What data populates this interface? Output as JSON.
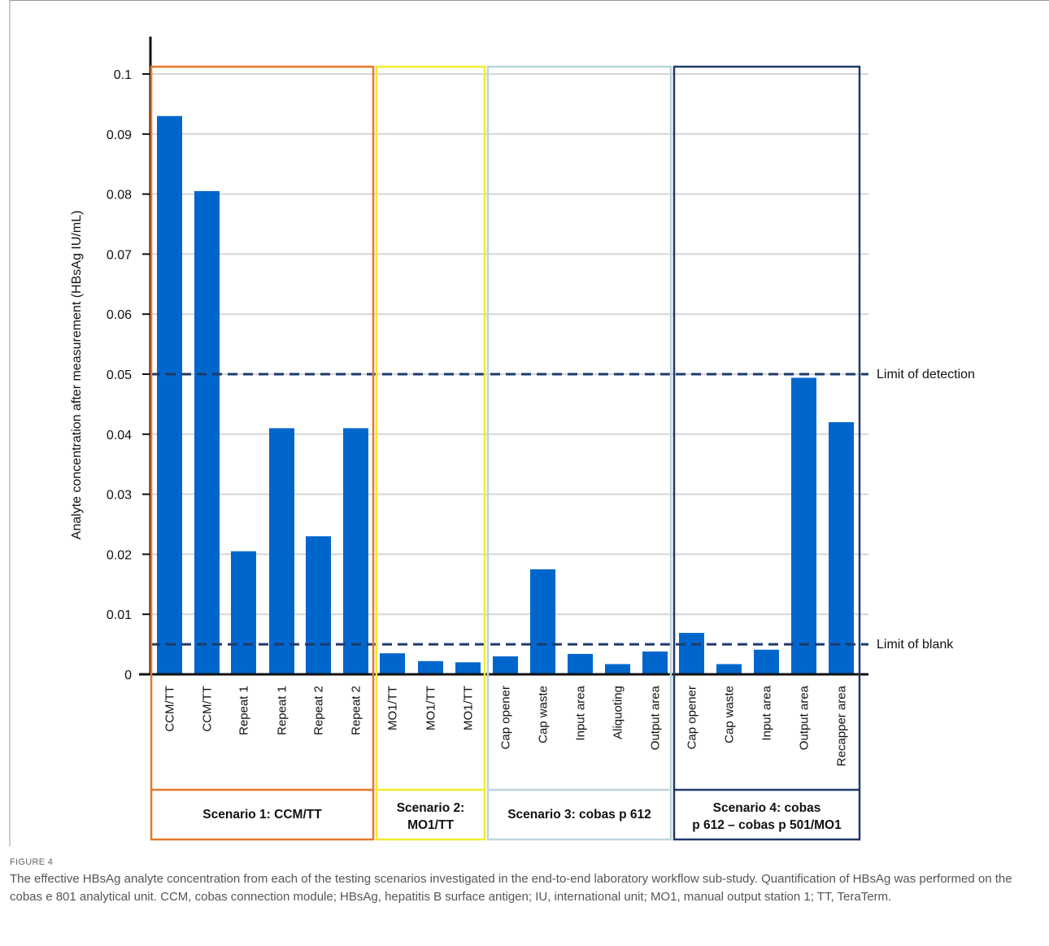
{
  "figure": {
    "label": "FIGURE 4",
    "caption": "The effective HBsAg analyte concentration from each of the testing scenarios investigated in the end-to-end laboratory workflow sub-study. Quantification of HBsAg was performed on the cobas e 801 analytical unit. CCM, cobas connection module; HBsAg, hepatitis B surface antigen; IU, international unit; MO1, manual output station 1; TT, TeraTerm."
  },
  "chart_data": {
    "type": "bar",
    "ylabel": "Analyte concentration after measurement (HBsAg IU/mL)",
    "ylim": [
      0,
      0.1
    ],
    "yticks": [
      0,
      0.01,
      0.02,
      0.03,
      0.04,
      0.05,
      0.06,
      0.07,
      0.08,
      0.09,
      0.1
    ],
    "ytick_labels": [
      "0",
      "0.01",
      "0.02",
      "0.03",
      "0.04",
      "0.05",
      "0.06",
      "0.07",
      "0.08",
      "0.09",
      "0.1"
    ],
    "grid": true,
    "bar_color": "#0066cc",
    "reference_lines": [
      {
        "label": "Limit of detection",
        "value": 0.05,
        "color": "#1f3a6b"
      },
      {
        "label": "Limit of blank",
        "value": 0.005,
        "color": "#1f3a6b"
      }
    ],
    "groups": [
      {
        "name": "Scenario 1: CCM/TT",
        "color": "#e8762b",
        "categories": [
          "CCM/TT",
          "CCM/TT",
          "Repeat 1",
          "Repeat 1",
          "Repeat 2",
          "Repeat 2"
        ],
        "values": [
          0.093,
          0.0805,
          0.0205,
          0.041,
          0.023,
          0.041
        ]
      },
      {
        "name": "Scenario 2: MO1/TT",
        "color": "#f2ec2b",
        "categories": [
          "MO1/TT",
          "MO1/TT",
          "MO1/TT"
        ],
        "values": [
          0.0035,
          0.0022,
          0.002
        ]
      },
      {
        "name": "Scenario 3: cobas p 612",
        "color": "#bcd6dc",
        "categories": [
          "Cap opener",
          "Cap waste",
          "Input area",
          "Aliquoting",
          "Output area"
        ],
        "values": [
          0.003,
          0.0175,
          0.0034,
          0.0017,
          0.0038
        ]
      },
      {
        "name": "Scenario 4: cobas p 612 – cobas p 501/MO1",
        "color": "#1f3a6b",
        "categories": [
          "Cap opener",
          "Cap waste",
          "Input area",
          "Output area",
          "Recapper area"
        ],
        "values": [
          0.0069,
          0.0017,
          0.0041,
          0.0494,
          0.042
        ]
      }
    ]
  }
}
